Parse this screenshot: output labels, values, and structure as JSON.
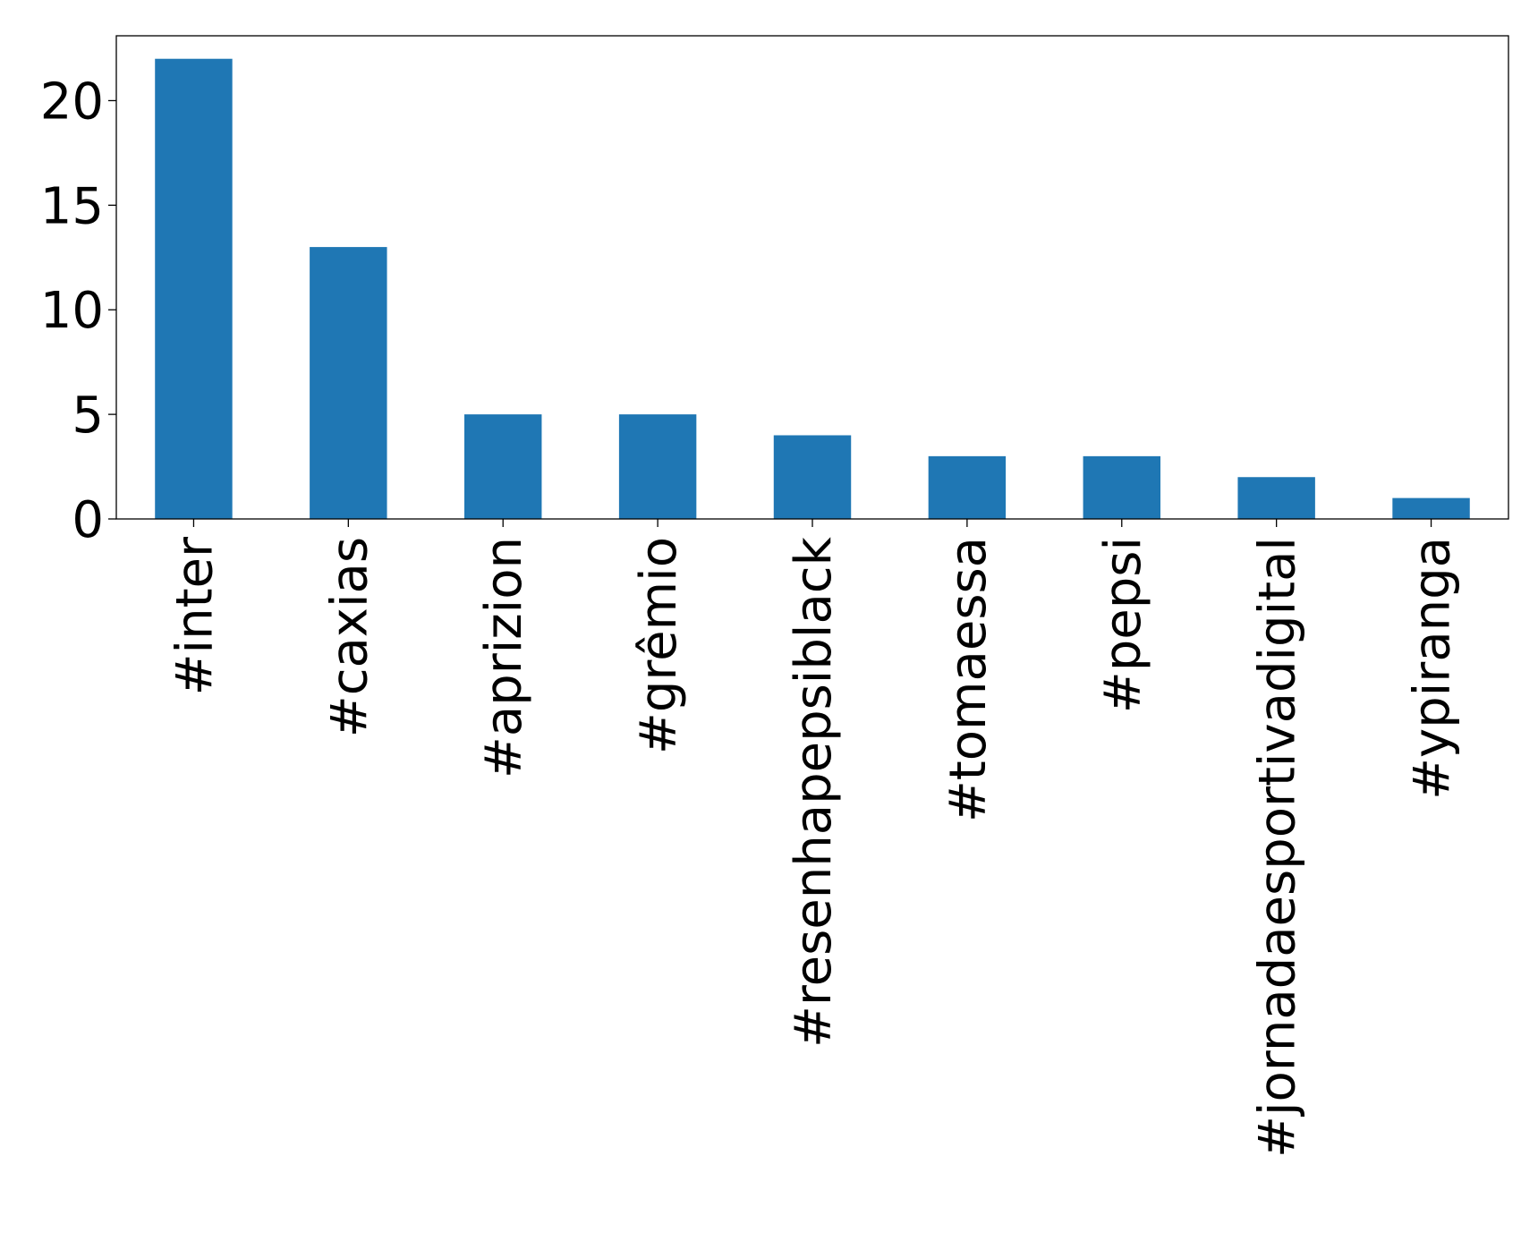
{
  "chart_data": {
    "type": "bar",
    "title": "",
    "xlabel": "",
    "ylabel": "",
    "categories": [
      "#inter",
      "#caxias",
      "#aprizion",
      "#grêmio",
      "#resenhapepsiblack",
      "#tomaessa",
      "#pepsi",
      "#jornadaesportivadigital",
      "#ypiranga"
    ],
    "values": [
      22,
      13,
      5,
      5,
      4,
      3,
      3,
      2,
      1
    ],
    "ylim": [
      0,
      23.1
    ],
    "yticks": [
      0,
      5,
      10,
      15,
      20
    ],
    "grid": false,
    "legend": "none",
    "bar_color": "#1f77b4"
  }
}
